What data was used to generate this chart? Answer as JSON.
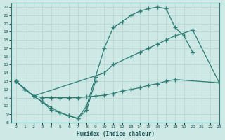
{
  "xlabel": "Humidex (Indice chaleur)",
  "bg_color": "#cde8e5",
  "line_color": "#2d7d75",
  "grid_color": "#b8d8d5",
  "xlim": [
    -0.5,
    23
  ],
  "ylim": [
    8,
    22.5
  ],
  "xticks": [
    0,
    1,
    2,
    3,
    4,
    5,
    6,
    7,
    8,
    9,
    10,
    11,
    12,
    13,
    14,
    15,
    16,
    17,
    18,
    19,
    20,
    21,
    22,
    23
  ],
  "yticks": [
    8,
    9,
    10,
    11,
    12,
    13,
    14,
    15,
    16,
    17,
    18,
    19,
    20,
    21,
    22
  ],
  "line1_x": [
    0,
    1,
    2,
    3,
    4,
    5,
    6,
    7,
    8,
    9,
    10,
    11,
    12,
    13,
    14,
    15,
    16,
    17,
    18,
    19,
    20
  ],
  "line1_y": [
    13,
    12,
    11.2,
    10.5,
    9.5,
    9.2,
    8.8,
    8.5,
    10,
    13.5,
    17,
    19.5,
    20.2,
    21,
    21.5,
    21.8,
    22,
    21.8,
    19.5,
    18.5,
    16.5
  ],
  "line2_x": [
    0,
    2,
    10,
    11,
    13,
    14,
    15,
    16,
    17,
    18,
    20,
    23
  ],
  "line2_y": [
    13,
    11.2,
    14,
    15,
    16,
    16.5,
    17,
    17.5,
    18,
    18.5,
    19.2,
    12.8
  ],
  "line3_x": [
    0,
    2,
    3,
    4,
    5,
    6,
    7,
    8,
    9,
    10,
    11,
    12,
    13,
    14,
    15,
    16,
    17,
    18,
    23
  ],
  "line3_y": [
    13,
    11.2,
    11,
    11,
    11,
    11,
    11,
    11.1,
    11.2,
    11.3,
    11.5,
    11.8,
    12,
    12.2,
    12.5,
    12.7,
    13,
    13.2,
    12.8
  ],
  "line4_x": [
    1,
    2,
    3,
    4,
    5,
    6,
    7,
    8,
    9
  ],
  "line4_y": [
    12,
    11.2,
    10.5,
    9.8,
    9.2,
    8.8,
    8.5,
    9.5,
    13
  ]
}
